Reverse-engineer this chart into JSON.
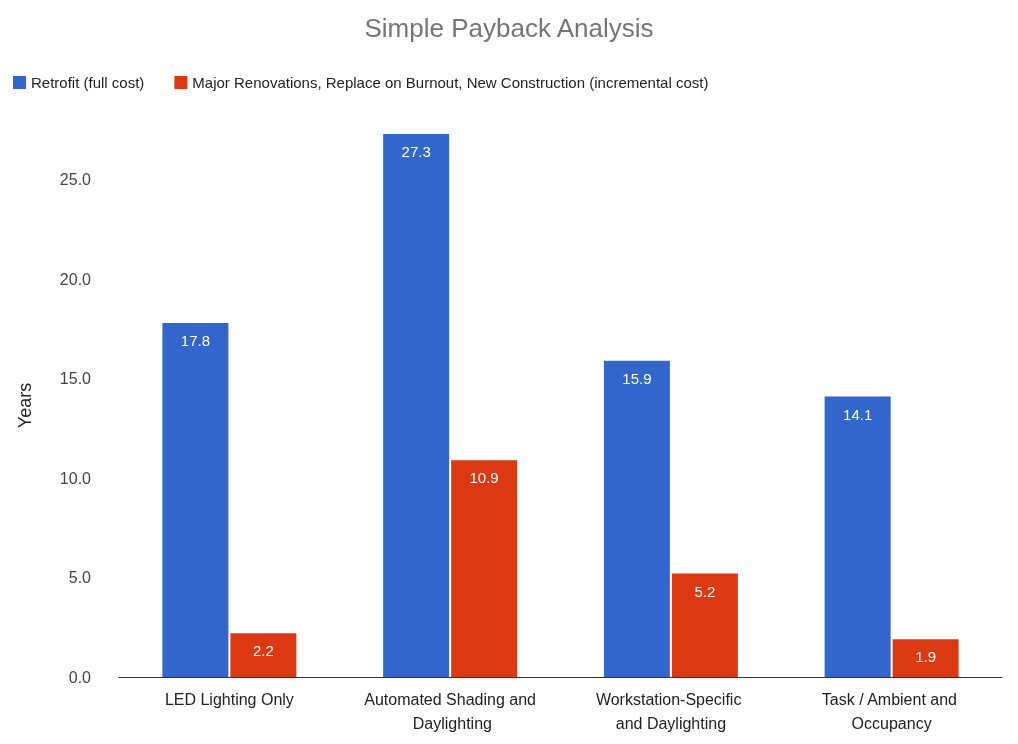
{
  "chart_data": {
    "type": "bar",
    "title": "Simple Payback Analysis",
    "ylabel": "Years",
    "categories": [
      "LED Lighting Only",
      "Automated Shading and Daylighting",
      "Workstation-Specific and Daylighting",
      "Task / Ambient and Occupancy"
    ],
    "series": [
      {
        "name": "Retrofit (full cost)",
        "color": "#3366cc",
        "values": [
          17.8,
          27.3,
          15.9,
          14.1
        ]
      },
      {
        "name": "Major Renovations, Replace on Burnout, New Construction (incremental cost)",
        "color": "#dc3912",
        "values": [
          2.2,
          10.9,
          5.2,
          1.9
        ]
      }
    ],
    "ylim": [
      0,
      27.3
    ],
    "yticks": [
      {
        "value": 0,
        "label": "0.0"
      },
      {
        "value": 5,
        "label": "5.0"
      },
      {
        "value": 10,
        "label": "10.0"
      },
      {
        "value": 15,
        "label": "15.0"
      },
      {
        "value": 20,
        "label": "20.0"
      },
      {
        "value": 25,
        "label": "25.0"
      }
    ],
    "data_labels": true,
    "legend": "top left",
    "grid": false
  }
}
